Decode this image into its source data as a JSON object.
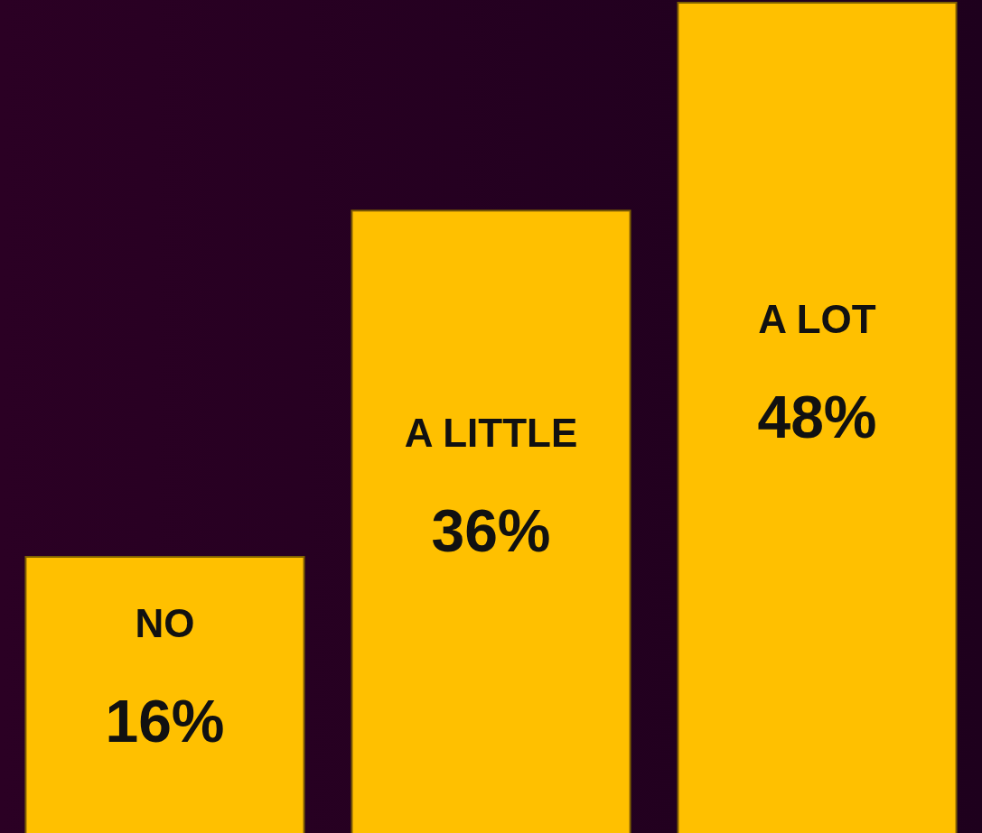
{
  "chart_data": {
    "type": "bar",
    "categories": [
      "NO",
      "A LITTLE",
      "A LOT"
    ],
    "values": [
      16,
      36,
      48
    ],
    "value_labels": [
      "16%",
      "36%",
      "48%"
    ],
    "color": "#ffc000",
    "legend": false,
    "tick_labels": false
  }
}
